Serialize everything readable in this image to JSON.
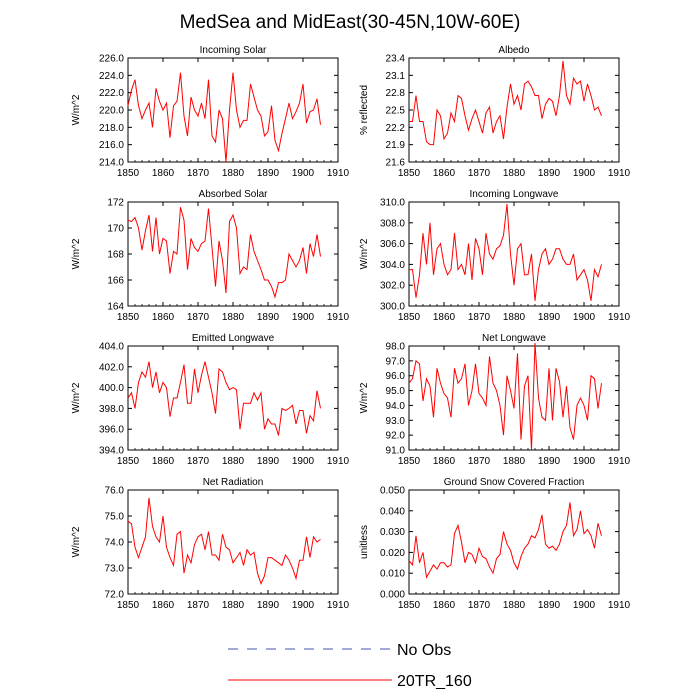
{
  "figure": {
    "title": "MedSea and MidEast(30-45N,10W-60E)",
    "legend": [
      {
        "label": "No Obs",
        "color": "#4a56b0",
        "dash": true
      },
      {
        "label": "20TR_160",
        "color": "#ff0000",
        "dash": false
      }
    ]
  },
  "chart_data": [
    {
      "type": "line",
      "title": "Incoming Solar",
      "ylabel": "W/m^2",
      "xlim": [
        1850,
        1910
      ],
      "ylim": [
        214,
        226
      ],
      "xticks": [
        1850,
        1860,
        1870,
        1880,
        1890,
        1900,
        1910
      ],
      "yticks": [
        "214.0",
        "216.0",
        "218.0",
        "220.0",
        "222.0",
        "224.0",
        "226.0"
      ],
      "series": [
        {
          "name": "20TR_160",
          "start_year": 1850,
          "values": [
            220.5,
            222.3,
            223.5,
            220.5,
            219.0,
            220.0,
            220.8,
            218.0,
            222.5,
            221.0,
            220.0,
            220.8,
            216.8,
            220.5,
            221.0,
            224.3,
            219.3,
            217.0,
            221.5,
            220.0,
            219.3,
            220.8,
            219.0,
            223.5,
            217.0,
            216.3,
            220.0,
            219.0,
            214.0,
            220.0,
            224.3,
            220.0,
            218.0,
            218.8,
            218.8,
            223.0,
            221.5,
            220.0,
            219.3,
            217.0,
            217.5,
            220.5,
            216.5,
            215.3,
            217.3,
            219.0,
            220.8,
            219.0,
            219.8,
            220.8,
            223.0,
            218.5,
            219.8,
            220.0,
            221.3,
            218.3
          ]
        }
      ]
    },
    {
      "type": "line",
      "title": "Albedo",
      "ylabel": "% reflected",
      "xlim": [
        1850,
        1910
      ],
      "ylim": [
        21.6,
        23.4
      ],
      "xticks": [
        1850,
        1860,
        1870,
        1880,
        1890,
        1900,
        1910
      ],
      "yticks": [
        "21.6",
        "21.9",
        "22.2",
        "22.5",
        "22.8",
        "23.1",
        "23.4"
      ],
      "series": [
        {
          "name": "20TR_160",
          "start_year": 1850,
          "values": [
            22.3,
            22.3,
            22.75,
            22.3,
            22.3,
            21.95,
            21.9,
            21.9,
            22.5,
            22.4,
            22.0,
            22.1,
            22.45,
            22.3,
            22.75,
            22.7,
            22.4,
            22.15,
            22.35,
            22.5,
            22.3,
            22.1,
            22.45,
            22.55,
            22.1,
            22.3,
            22.4,
            22.0,
            22.55,
            22.95,
            22.6,
            22.75,
            22.5,
            22.95,
            23.0,
            22.9,
            22.75,
            22.75,
            22.35,
            22.6,
            22.7,
            22.65,
            22.4,
            22.75,
            23.35,
            22.75,
            22.6,
            23.05,
            22.95,
            23.0,
            22.65,
            22.95,
            22.75,
            22.5,
            22.55,
            22.4
          ]
        }
      ]
    },
    {
      "type": "line",
      "title": "Absorbed Solar",
      "ylabel": "W/m^2",
      "xlim": [
        1850,
        1910
      ],
      "ylim": [
        164,
        172
      ],
      "xticks": [
        1850,
        1860,
        1870,
        1880,
        1890,
        1900,
        1910
      ],
      "yticks": [
        "164",
        "166",
        "168",
        "170",
        "172"
      ],
      "series": [
        {
          "name": "20TR_160",
          "start_year": 1850,
          "values": [
            170.6,
            170.5,
            170.8,
            170.0,
            168.3,
            169.8,
            171.0,
            168.2,
            170.8,
            168.0,
            169.2,
            169.0,
            166.5,
            168.2,
            168.0,
            171.6,
            170.6,
            166.8,
            169.2,
            168.5,
            168.2,
            168.8,
            169.0,
            171.5,
            168.5,
            165.5,
            169.0,
            167.5,
            165.0,
            170.5,
            171.0,
            170.0,
            166.5,
            167.0,
            166.8,
            169.5,
            168.2,
            167.5,
            166.8,
            166.0,
            166.0,
            165.5,
            164.7,
            165.8,
            165.8,
            166.0,
            168.0,
            167.5,
            167.0,
            167.5,
            168.5,
            166.5,
            168.8,
            167.8,
            169.5,
            167.8
          ]
        }
      ]
    },
    {
      "type": "line",
      "title": "Incoming Longwave",
      "ylabel": "W/m^2",
      "xlim": [
        1850,
        1910
      ],
      "ylim": [
        300,
        310
      ],
      "xticks": [
        1850,
        1860,
        1870,
        1880,
        1890,
        1900,
        1910
      ],
      "yticks": [
        "300.0",
        "302.0",
        "304.0",
        "306.0",
        "308.0",
        "310.0"
      ],
      "series": [
        {
          "name": "20TR_160",
          "start_year": 1850,
          "values": [
            303.5,
            303.5,
            300.8,
            303.0,
            307.0,
            304.0,
            308.0,
            303.0,
            305.5,
            306.0,
            304.0,
            303.0,
            303.5,
            307.0,
            303.5,
            304.0,
            303.0,
            306.0,
            302.5,
            306.5,
            305.5,
            303.0,
            307.0,
            305.0,
            304.5,
            305.5,
            305.8,
            306.8,
            309.8,
            305.0,
            302.0,
            305.5,
            306.0,
            303.0,
            303.0,
            305.0,
            300.5,
            303.5,
            305.0,
            305.5,
            304.0,
            304.5,
            305.5,
            305.5,
            304.5,
            304.0,
            304.0,
            305.0,
            302.5,
            303.0,
            303.5,
            302.5,
            300.5,
            303.5,
            302.8,
            304.0
          ]
        }
      ]
    },
    {
      "type": "line",
      "title": "Emitted Longwave",
      "ylabel": "W/m^2",
      "xlim": [
        1850,
        1910
      ],
      "ylim": [
        394,
        404
      ],
      "xticks": [
        1850,
        1860,
        1870,
        1880,
        1890,
        1900,
        1910
      ],
      "yticks": [
        "394.0",
        "396.0",
        "398.0",
        "400.0",
        "402.0",
        "404.0"
      ],
      "series": [
        {
          "name": "20TR_160",
          "start_year": 1850,
          "values": [
            399.0,
            399.5,
            398.0,
            400.5,
            401.5,
            401.0,
            402.5,
            400.0,
            401.5,
            399.5,
            400.5,
            400.0,
            397.2,
            399.0,
            399.0,
            400.5,
            402.2,
            398.5,
            398.5,
            401.8,
            399.5,
            401.2,
            402.5,
            401.0,
            399.5,
            397.5,
            401.8,
            401.5,
            400.5,
            399.8,
            400.0,
            399.8,
            396.0,
            398.5,
            398.5,
            398.5,
            399.5,
            398.8,
            399.5,
            396.0,
            397.0,
            396.5,
            396.5,
            395.4,
            398.0,
            397.8,
            398.0,
            398.3,
            396.5,
            397.8,
            397.8,
            395.6,
            397.3,
            396.8,
            399.7,
            398.0
          ]
        }
      ]
    },
    {
      "type": "line",
      "title": "Net Longwave",
      "ylabel": "W/m^2",
      "xlim": [
        1850,
        1910
      ],
      "ylim": [
        91,
        98
      ],
      "xticks": [
        1850,
        1860,
        1870,
        1880,
        1890,
        1900,
        1910
      ],
      "yticks": [
        "91.0",
        "92.0",
        "93.0",
        "94.0",
        "95.0",
        "96.0",
        "97.0",
        "98.0"
      ],
      "series": [
        {
          "name": "20TR_160",
          "start_year": 1850,
          "values": [
            95.5,
            95.8,
            97.0,
            96.8,
            94.3,
            95.8,
            95.3,
            93.2,
            96.5,
            95.5,
            94.8,
            94.5,
            93.2,
            96.5,
            95.5,
            95.8,
            96.8,
            94.0,
            95.0,
            96.8,
            94.8,
            94.5,
            94.0,
            97.3,
            95.5,
            95.0,
            94.0,
            92.0,
            96.0,
            95.0,
            93.8,
            97.5,
            91.7,
            95.3,
            96.0,
            91.0,
            98.2,
            94.5,
            93.2,
            93.0,
            96.5,
            93.0,
            96.5,
            95.6,
            93.2,
            95.3,
            92.5,
            91.7,
            94.0,
            94.5,
            94.0,
            93.0,
            96.0,
            95.8,
            93.8,
            95.5
          ]
        }
      ]
    },
    {
      "type": "line",
      "title": "Net Radiation",
      "ylabel": "W/m^2",
      "xlim": [
        1850,
        1910
      ],
      "ylim": [
        72,
        76
      ],
      "xticks": [
        1850,
        1860,
        1870,
        1880,
        1890,
        1900,
        1910
      ],
      "yticks": [
        "72.0",
        "73.0",
        "74.0",
        "75.0",
        "76.0"
      ],
      "series": [
        {
          "name": "20TR_160",
          "start_year": 1850,
          "values": [
            74.8,
            74.7,
            73.8,
            73.4,
            73.8,
            74.2,
            75.7,
            74.6,
            74.2,
            74.0,
            75.0,
            73.8,
            73.4,
            73.1,
            74.3,
            74.4,
            72.8,
            73.5,
            73.2,
            73.9,
            74.2,
            74.3,
            73.7,
            74.4,
            73.5,
            73.5,
            73.3,
            74.3,
            73.8,
            73.7,
            73.2,
            73.4,
            73.6,
            73.1,
            73.7,
            73.5,
            73.6,
            72.8,
            72.4,
            72.7,
            73.4,
            73.4,
            73.3,
            73.2,
            73.1,
            73.5,
            73.3,
            73.0,
            72.6,
            73.3,
            73.3,
            74.2,
            73.4,
            74.2,
            74.0,
            74.1
          ]
        }
      ]
    },
    {
      "type": "line",
      "title": "Ground Snow Covered Fraction",
      "ylabel": "unitless",
      "xlim": [
        1850,
        1910
      ],
      "ylim": [
        0,
        0.05
      ],
      "xticks": [
        1850,
        1860,
        1870,
        1880,
        1890,
        1900,
        1910
      ],
      "yticks": [
        "0.000",
        "0.010",
        "0.020",
        "0.030",
        "0.040",
        "0.050"
      ],
      "series": [
        {
          "name": "20TR_160",
          "start_year": 1850,
          "values": [
            0.016,
            0.014,
            0.028,
            0.015,
            0.02,
            0.008,
            0.011,
            0.014,
            0.012,
            0.015,
            0.015,
            0.013,
            0.014,
            0.029,
            0.033,
            0.025,
            0.015,
            0.02,
            0.019,
            0.015,
            0.022,
            0.018,
            0.017,
            0.013,
            0.01,
            0.017,
            0.019,
            0.03,
            0.024,
            0.021,
            0.015,
            0.012,
            0.018,
            0.022,
            0.024,
            0.028,
            0.027,
            0.031,
            0.038,
            0.024,
            0.022,
            0.023,
            0.021,
            0.024,
            0.03,
            0.033,
            0.044,
            0.028,
            0.031,
            0.04,
            0.029,
            0.031,
            0.028,
            0.022,
            0.034,
            0.028
          ]
        }
      ]
    }
  ]
}
